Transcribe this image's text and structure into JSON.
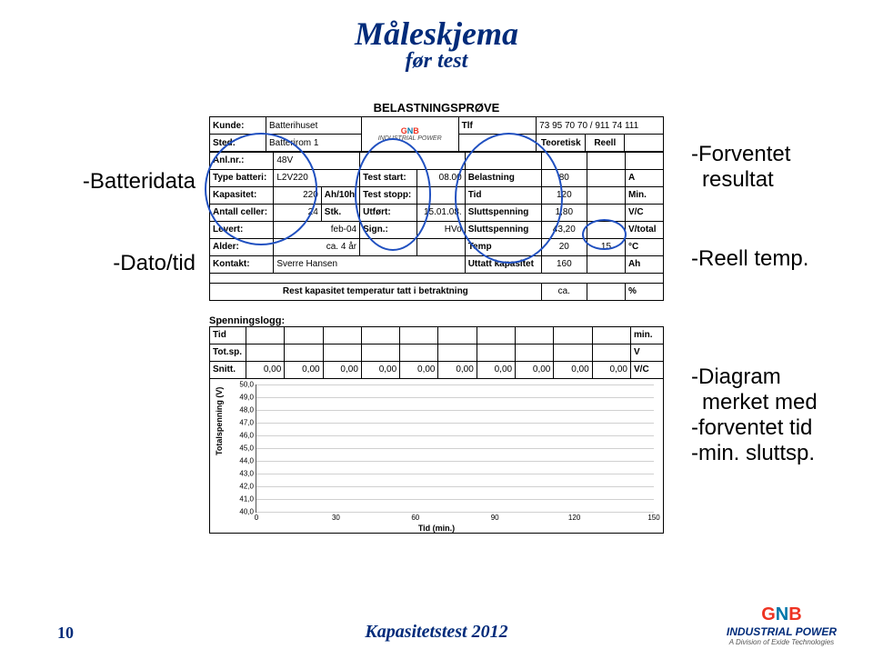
{
  "title": "Måleskjema",
  "subtitle": "før test",
  "form_title": "BELASTNINGSPRØVE",
  "header": {
    "kunde_l": "Kunde:",
    "kunde": "Batterihuset",
    "tlf_l": "Tlf",
    "tlf": "73 95 70 70 / 911 74 111",
    "sted_l": "Sted:",
    "sted": "Batterirom 1",
    "anl_l": "Anl.nr.:",
    "anl": "48V",
    "teo_l": "Teoretisk",
    "reell_l": "Reell",
    "type_l": "Type batteri:",
    "type": "L2V220",
    "tstart_l": "Test start:",
    "tstart": "08.00",
    "bel_l": "Belastning",
    "bel": "80",
    "bel_u": "A",
    "kap_l": "Kapasitet:",
    "kap": "220",
    "kap_u": "Ah/10h",
    "tstopp_l": "Test stopp:",
    "tid_l": "Tid",
    "tid": "120",
    "tid_u": "Min.",
    "cell_l": "Antall celler:",
    "cell": "24",
    "cell_u": "Stk.",
    "utfort_l": "Utført:",
    "utfort": "15.01.08.",
    "slutt_l": "Sluttspenning",
    "slutt": "1,80",
    "slutt_u": "V/C",
    "lev_l": "Levert:",
    "lev": "feb-04",
    "sign_l": "Sign.:",
    "sign": "HVo",
    "slutt2_l": "Sluttspenning",
    "slutt2": "43,20",
    "slutt2_u": "V/total",
    "ald_l": "Alder:",
    "ald": "ca. 4 år",
    "temp_l": "Temp",
    "temp_t": "20",
    "temp_r": "15",
    "temp_u": "°C",
    "kon_l": "Kontakt:",
    "kon": "Sverre Hansen",
    "utt_l": "Uttatt kapasitet",
    "utt": "160",
    "utt_u": "Ah",
    "rest_l": "Rest kapasitet temperatur tatt i betraktning",
    "rest_ca": "ca.",
    "rest_u": "%"
  },
  "spenning_title": "Spenningslogg:",
  "log": {
    "tid_l": "Tid",
    "tid_u": "min.",
    "tot_l": "Tot.sp.",
    "tot_u": "V",
    "snitt_l": "Snitt.",
    "cells": [
      "0,00",
      "0,00",
      "0,00",
      "0,00",
      "0,00",
      "0,00",
      "0,00",
      "0,00",
      "0,00",
      "0,00"
    ],
    "snitt_u": "V/C"
  },
  "chart": {
    "ylabel": "Totalspenning (V)",
    "xlabel": "Tid (min.)",
    "ymin": 40,
    "ymax": 50,
    "ystep": 1,
    "xmin": 0,
    "xmax": 150,
    "xstep": 30,
    "yticks": [
      "50,0",
      "49,0",
      "48,0",
      "47,0",
      "46,0",
      "45,0",
      "44,0",
      "43,0",
      "42,0",
      "41,0",
      "40,0"
    ],
    "xticks": [
      "0",
      "30",
      "60",
      "90",
      "120",
      "150"
    ],
    "grid_color": "#d0d0d0",
    "bg": "#ffffff"
  },
  "callouts": {
    "left1": "-Batteridata",
    "left2": "-Dato/tid",
    "right1a": "-Forventet",
    "right1b": "resultat",
    "right2": "-Reell temp.",
    "right3a": "-Diagram",
    "right3b": "merket med",
    "right3c": "-forventet tid",
    "right3d": "-min. sluttsp."
  },
  "footer": {
    "page": "10",
    "title": "Kapasitetstest 2012",
    "brand1": "GNB",
    "brand2": "INDUSTRIAL POWER",
    "brand3": "A Division of Exide Technologies"
  }
}
